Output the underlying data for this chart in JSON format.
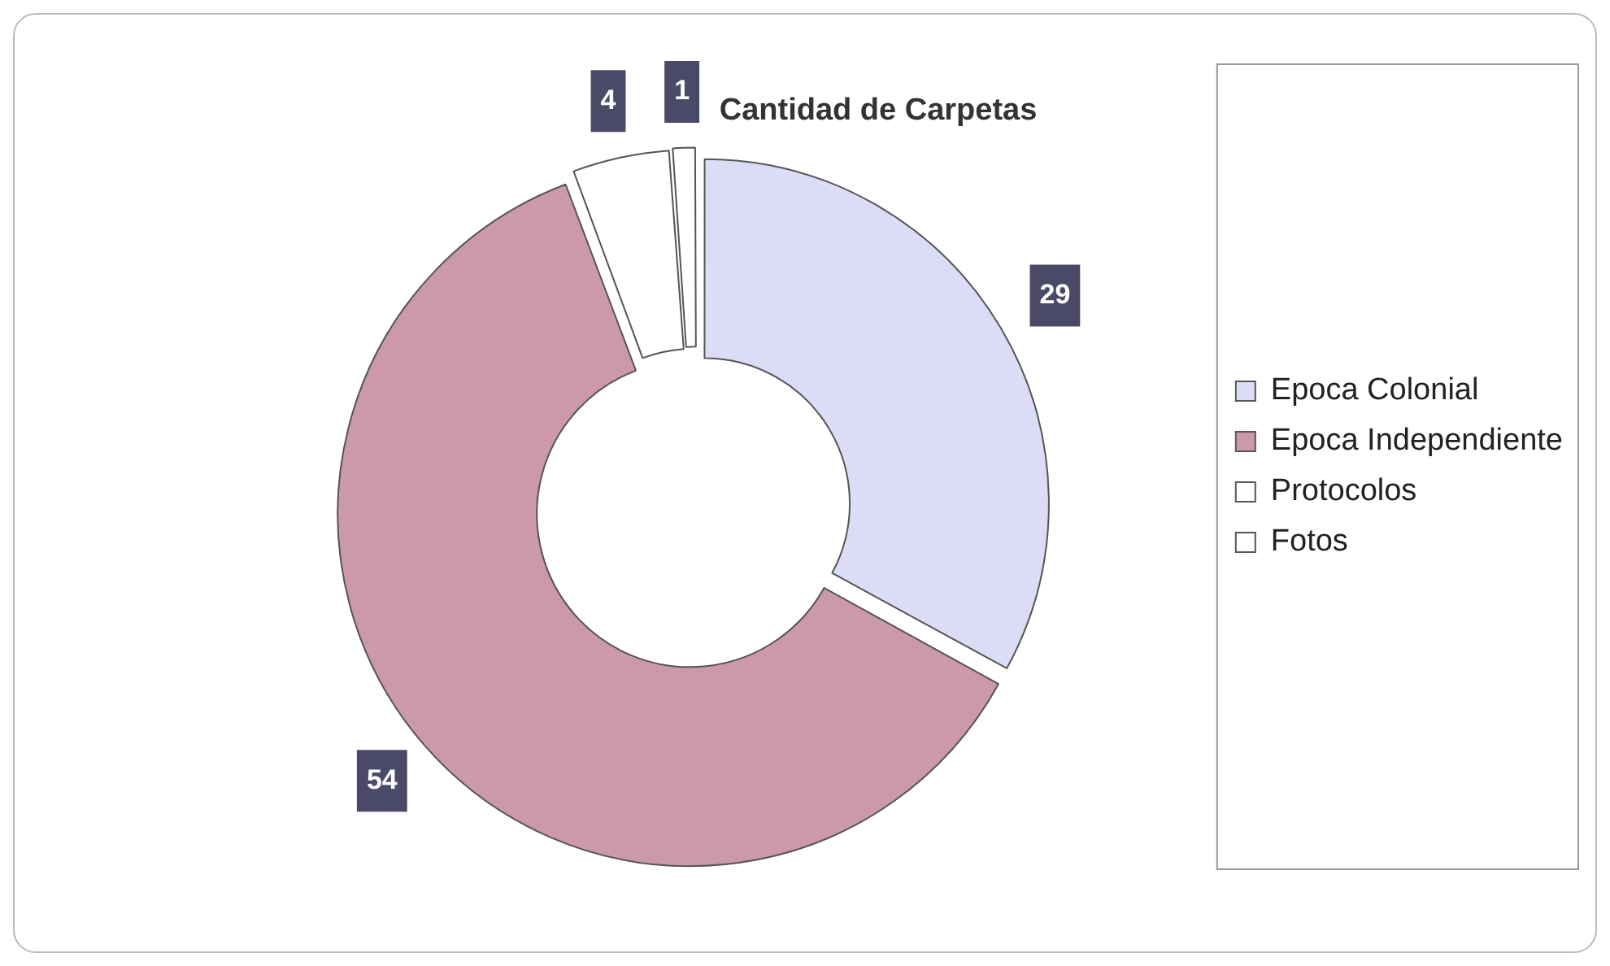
{
  "chart_data": {
    "type": "donut",
    "title": "Cantidad de Carpetas",
    "categories": [
      "Epoca Colonial",
      "Epoca Independiente",
      "Protocolos",
      "Fotos"
    ],
    "values": [
      29,
      54,
      4,
      1
    ],
    "colors": [
      "#dcdcf6",
      "#cc98ac",
      "#ffffff",
      "#ffffff"
    ],
    "data_labels": true,
    "legend": "right"
  }
}
